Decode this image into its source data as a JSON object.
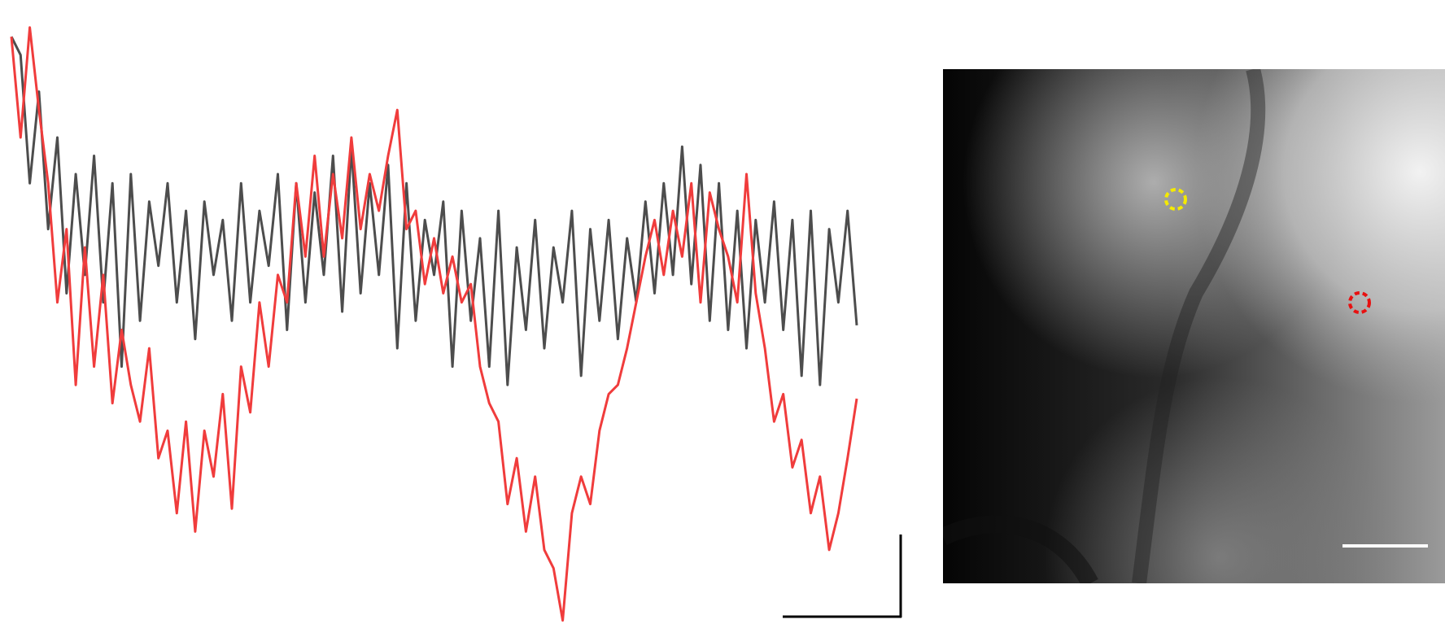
{
  "chart_data": {
    "type": "line",
    "ylim": [
      0,
      680
    ],
    "series": [
      {
        "color": "#4d4d4d",
        "values": [
          640,
          620,
          480,
          580,
          430,
          530,
          360,
          490,
          380,
          510,
          350,
          480,
          280,
          490,
          330,
          460,
          390,
          480,
          350,
          450,
          310,
          460,
          380,
          440,
          330,
          480,
          350,
          450,
          390,
          490,
          320,
          480,
          350,
          470,
          380,
          510,
          340,
          520,
          360,
          480,
          380,
          500,
          300,
          480,
          330,
          440,
          380,
          460,
          280,
          450,
          330,
          420,
          280,
          450,
          260,
          410,
          320,
          440,
          300,
          410,
          350,
          450,
          270,
          430,
          330,
          440,
          310,
          420,
          350,
          460,
          360,
          480,
          380,
          520,
          370,
          500,
          330,
          480,
          320,
          450,
          300,
          440,
          350,
          460,
          320,
          440,
          270,
          450,
          260,
          430,
          350,
          450,
          325
        ]
      },
      {
        "color": "#f03c3c",
        "values": [
          640,
          530,
          650,
          560,
          480,
          350,
          430,
          260,
          410,
          280,
          380,
          240,
          320,
          260,
          220,
          300,
          180,
          210,
          120,
          220,
          100,
          210,
          160,
          250,
          125,
          280,
          230,
          350,
          280,
          380,
          350,
          480,
          400,
          510,
          400,
          490,
          420,
          530,
          430,
          490,
          450,
          510,
          560,
          430,
          450,
          370,
          420,
          360,
          400,
          350,
          370,
          280,
          240,
          220,
          130,
          180,
          100,
          160,
          80,
          60,
          3,
          120,
          160,
          130,
          210,
          250,
          260,
          300,
          350,
          400,
          440,
          380,
          450,
          400,
          480,
          350,
          470,
          430,
          400,
          350,
          490,
          360,
          300,
          220,
          250,
          170,
          200,
          120,
          160,
          80,
          120,
          180,
          245
        ]
      }
    ]
  }
}
